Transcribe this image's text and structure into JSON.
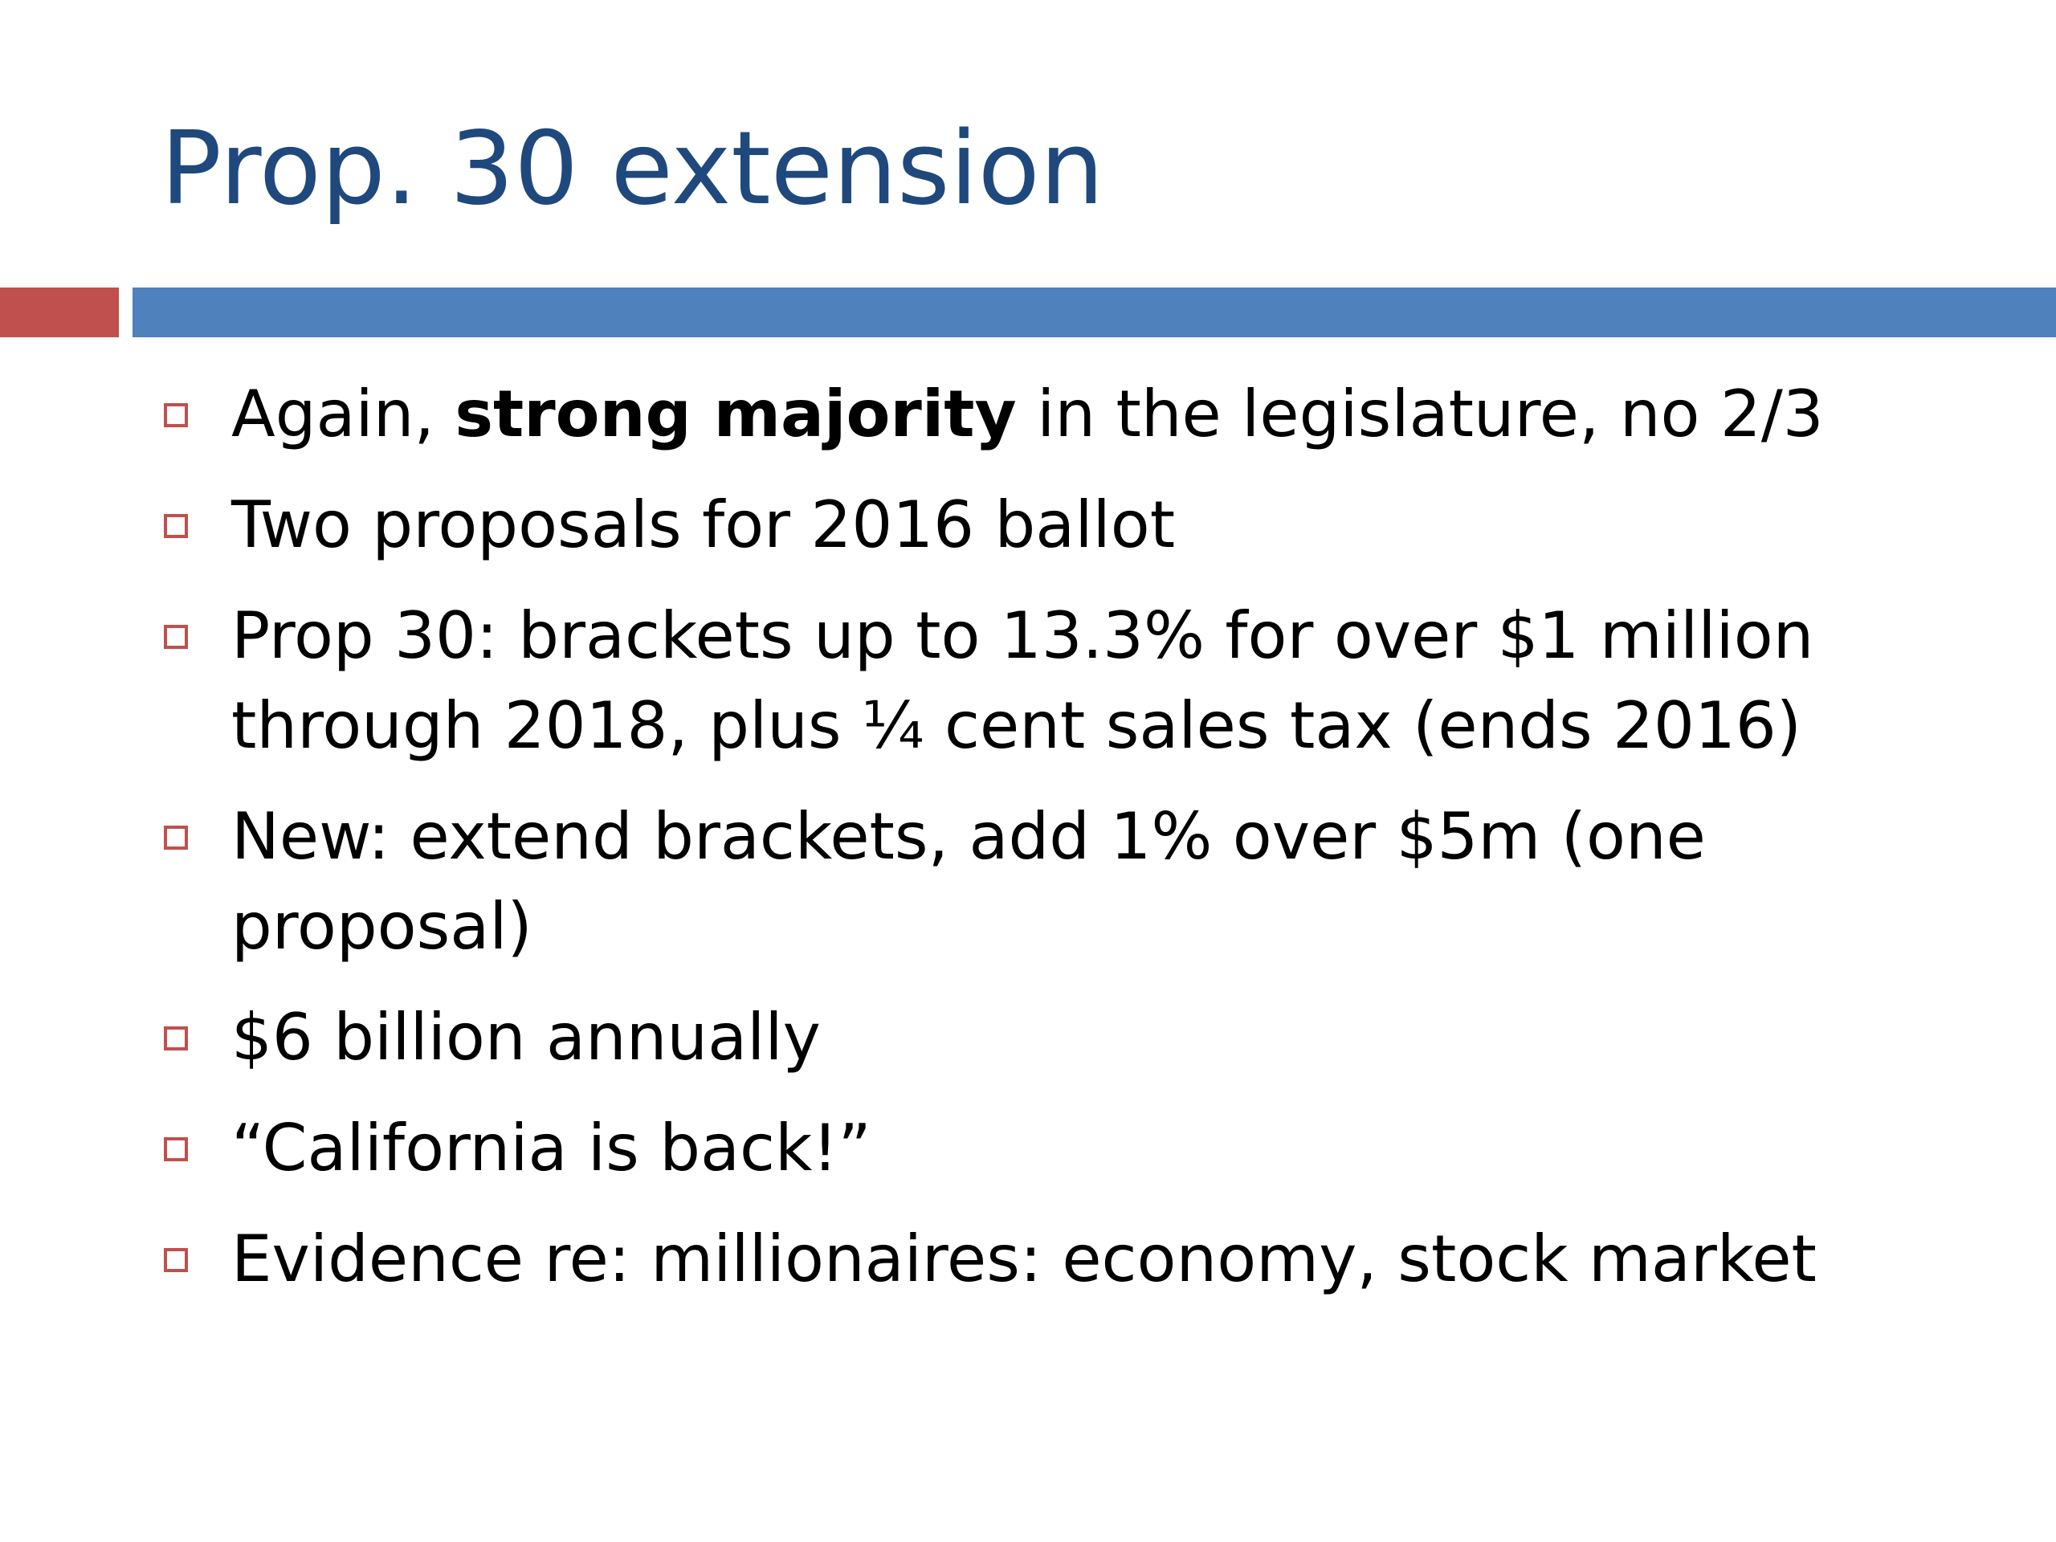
{
  "slide": {
    "title": "Prop. 30 extension",
    "colors": {
      "title": "#1f497d",
      "accent_red": "#c0504d",
      "accent_blue": "#4f81bd",
      "bullet_marker": "#c0504d",
      "text": "#000000"
    },
    "bullet_icon": "hollow-square-icon",
    "bullets": [
      {
        "pre": "Again, ",
        "bold": "strong majority",
        "post": " in the legislature, no 2/3"
      },
      {
        "text": "Two proposals for 2016 ballot"
      },
      {
        "text": "Prop 30: brackets up to 13.3% for over $1 million through 2018, plus ¼ cent sales tax (ends 2016)"
      },
      {
        "text": "New: extend brackets, add 1% over $5m (one proposal)"
      },
      {
        "text": "$6 billion annually"
      },
      {
        "text": "“California is back!”"
      },
      {
        "text": "Evidence re: millionaires:  economy, stock market"
      }
    ]
  }
}
